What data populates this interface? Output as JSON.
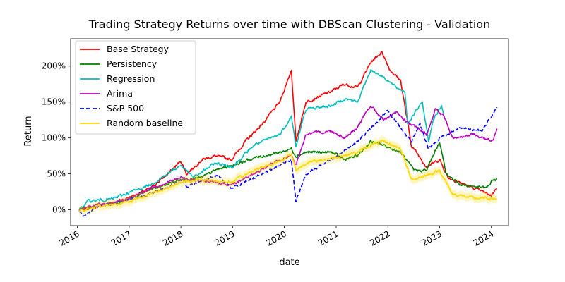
{
  "chart_data": {
    "type": "line",
    "title": "Trading Strategy Returns over time with DBScan Clustering - Validation",
    "xlabel": "date",
    "ylabel": "Return",
    "xlim": [
      "2015-11-15",
      "2024-05-01"
    ],
    "ylim": [
      -0.22,
      2.38
    ],
    "x_ticks": [
      "2016",
      "2017",
      "2018",
      "2019",
      "2020",
      "2021",
      "2022",
      "2023",
      "2024"
    ],
    "y_ticks": [
      {
        "value": 0,
        "label": "0%"
      },
      {
        "value": 0.5,
        "label": "50%"
      },
      {
        "value": 1.0,
        "label": "100%"
      },
      {
        "value": 1.5,
        "label": "150%"
      },
      {
        "value": 2.0,
        "label": "200%"
      }
    ],
    "grid": false,
    "legend_position": "upper-left",
    "series": [
      {
        "name": "Base Strategy",
        "color": "#ff0000",
        "dash": "solid",
        "points": [
          [
            "2016-01-15",
            0.0
          ],
          [
            "2016-06-01",
            0.05
          ],
          [
            "2016-12-01",
            0.15
          ],
          [
            "2017-03-01",
            0.22
          ],
          [
            "2017-06-01",
            0.3
          ],
          [
            "2017-10-01",
            0.5
          ],
          [
            "2018-01-01",
            0.68
          ],
          [
            "2018-02-10",
            0.5
          ],
          [
            "2018-06-01",
            0.7
          ],
          [
            "2018-09-01",
            0.75
          ],
          [
            "2018-12-24",
            0.7
          ],
          [
            "2019-04-01",
            0.95
          ],
          [
            "2019-08-01",
            1.2
          ],
          [
            "2019-12-01",
            1.5
          ],
          [
            "2020-02-20",
            1.95
          ],
          [
            "2020-03-23",
            0.95
          ],
          [
            "2020-06-01",
            1.5
          ],
          [
            "2020-12-01",
            1.65
          ],
          [
            "2021-03-01",
            1.75
          ],
          [
            "2021-06-01",
            1.7
          ],
          [
            "2021-09-01",
            2.05
          ],
          [
            "2021-11-20",
            2.2
          ],
          [
            "2022-01-15",
            1.95
          ],
          [
            "2022-04-01",
            1.8
          ],
          [
            "2022-06-15",
            0.9
          ],
          [
            "2022-10-01",
            0.6
          ],
          [
            "2023-01-01",
            0.7
          ],
          [
            "2023-03-01",
            0.45
          ],
          [
            "2023-09-01",
            0.3
          ],
          [
            "2024-01-01",
            0.2
          ],
          [
            "2024-02-10",
            0.32
          ]
        ]
      },
      {
        "name": "Persistency",
        "color": "#008000",
        "dash": "solid",
        "points": [
          [
            "2016-01-15",
            0.0
          ],
          [
            "2016-06-01",
            0.06
          ],
          [
            "2016-12-01",
            0.12
          ],
          [
            "2017-06-01",
            0.28
          ],
          [
            "2018-01-01",
            0.42
          ],
          [
            "2018-06-01",
            0.45
          ],
          [
            "2018-09-01",
            0.55
          ],
          [
            "2019-01-01",
            0.62
          ],
          [
            "2019-06-01",
            0.72
          ],
          [
            "2019-12-01",
            0.8
          ],
          [
            "2020-02-20",
            0.85
          ],
          [
            "2020-03-23",
            0.75
          ],
          [
            "2020-06-01",
            0.8
          ],
          [
            "2020-12-01",
            0.8
          ],
          [
            "2021-03-01",
            0.7
          ],
          [
            "2021-06-01",
            0.75
          ],
          [
            "2021-09-01",
            0.95
          ],
          [
            "2021-12-01",
            0.9
          ],
          [
            "2022-04-01",
            0.8
          ],
          [
            "2022-07-01",
            0.55
          ],
          [
            "2022-10-01",
            0.55
          ],
          [
            "2023-01-01",
            0.95
          ],
          [
            "2023-02-15",
            0.5
          ],
          [
            "2023-06-01",
            0.35
          ],
          [
            "2023-12-01",
            0.3
          ],
          [
            "2024-01-10",
            0.42
          ],
          [
            "2024-02-10",
            0.42
          ]
        ]
      },
      {
        "name": "Regression",
        "color": "#00bfbf",
        "dash": "solid",
        "points": [
          [
            "2016-01-15",
            0.0
          ],
          [
            "2016-03-15",
            0.12
          ],
          [
            "2016-09-01",
            0.15
          ],
          [
            "2017-06-01",
            0.35
          ],
          [
            "2018-01-01",
            0.62
          ],
          [
            "2018-04-01",
            0.45
          ],
          [
            "2018-09-01",
            0.65
          ],
          [
            "2019-01-01",
            0.6
          ],
          [
            "2019-06-01",
            0.9
          ],
          [
            "2019-12-01",
            1.05
          ],
          [
            "2020-02-20",
            1.3
          ],
          [
            "2020-03-23",
            0.88
          ],
          [
            "2020-06-01",
            1.4
          ],
          [
            "2020-12-01",
            1.45
          ],
          [
            "2021-03-01",
            1.55
          ],
          [
            "2021-06-01",
            1.5
          ],
          [
            "2021-09-01",
            1.95
          ],
          [
            "2021-12-01",
            1.85
          ],
          [
            "2022-03-01",
            1.7
          ],
          [
            "2022-05-01",
            1.65
          ],
          [
            "2022-05-20",
            1.2
          ],
          [
            "2022-09-01",
            1.5
          ],
          [
            "2022-10-15",
            0.95
          ],
          [
            "2022-11-15",
            1.25
          ],
          [
            "2023-01-15",
            1.45
          ],
          [
            "2023-02-01",
            1.3
          ]
        ]
      },
      {
        "name": "Arima",
        "color": "#bf00bf",
        "dash": "solid",
        "points": [
          [
            "2016-01-15",
            0.0
          ],
          [
            "2016-06-01",
            0.07
          ],
          [
            "2016-12-01",
            0.12
          ],
          [
            "2017-06-01",
            0.3
          ],
          [
            "2018-01-01",
            0.45
          ],
          [
            "2018-06-01",
            0.4
          ],
          [
            "2018-12-24",
            0.35
          ],
          [
            "2019-06-01",
            0.5
          ],
          [
            "2019-12-01",
            0.7
          ],
          [
            "2020-02-20",
            0.75
          ],
          [
            "2020-03-23",
            0.62
          ],
          [
            "2020-06-01",
            1.05
          ],
          [
            "2020-12-01",
            1.1
          ],
          [
            "2021-03-01",
            1.0
          ],
          [
            "2021-06-01",
            1.15
          ],
          [
            "2021-09-01",
            1.45
          ],
          [
            "2021-12-01",
            1.25
          ],
          [
            "2022-03-01",
            1.35
          ],
          [
            "2022-06-01",
            1.2
          ],
          [
            "2022-10-01",
            1.05
          ],
          [
            "2022-12-01",
            1.4
          ],
          [
            "2023-02-01",
            1.3
          ],
          [
            "2023-04-01",
            1.0
          ],
          [
            "2023-09-01",
            1.05
          ],
          [
            "2024-01-10",
            0.95
          ],
          [
            "2024-02-10",
            1.15
          ]
        ]
      },
      {
        "name": "S&P 500",
        "color": "#0000ff",
        "dash": "dashed",
        "points": [
          [
            "2016-01-15",
            0.0
          ],
          [
            "2016-02-11",
            -0.08
          ],
          [
            "2016-06-01",
            0.05
          ],
          [
            "2016-12-01",
            0.12
          ],
          [
            "2017-06-01",
            0.22
          ],
          [
            "2018-01-26",
            0.42
          ],
          [
            "2018-02-10",
            0.32
          ],
          [
            "2018-09-20",
            0.48
          ],
          [
            "2018-12-24",
            0.3
          ],
          [
            "2019-06-01",
            0.45
          ],
          [
            "2019-12-01",
            0.62
          ],
          [
            "2020-02-20",
            0.7
          ],
          [
            "2020-03-23",
            0.12
          ],
          [
            "2020-06-01",
            0.5
          ],
          [
            "2020-12-01",
            0.7
          ],
          [
            "2021-06-01",
            0.95
          ],
          [
            "2021-12-31",
            1.38
          ],
          [
            "2022-06-16",
            0.95
          ],
          [
            "2022-08-15",
            1.2
          ],
          [
            "2022-10-12",
            0.85
          ],
          [
            "2023-01-01",
            1.0
          ],
          [
            "2023-06-01",
            1.15
          ],
          [
            "2023-10-27",
            1.1
          ],
          [
            "2024-02-10",
            1.42
          ]
        ]
      },
      {
        "name": "Random baseline",
        "color": "#ffd700",
        "dash": "solid",
        "band": 0.06,
        "points": [
          [
            "2016-01-15",
            -0.02
          ],
          [
            "2016-06-01",
            0.05
          ],
          [
            "2016-12-01",
            0.1
          ],
          [
            "2017-06-01",
            0.22
          ],
          [
            "2018-01-01",
            0.38
          ],
          [
            "2018-06-01",
            0.42
          ],
          [
            "2018-12-24",
            0.38
          ],
          [
            "2019-06-01",
            0.55
          ],
          [
            "2019-12-01",
            0.68
          ],
          [
            "2020-02-20",
            0.78
          ],
          [
            "2020-03-23",
            0.55
          ],
          [
            "2020-06-01",
            0.65
          ],
          [
            "2020-12-01",
            0.72
          ],
          [
            "2021-06-01",
            0.8
          ],
          [
            "2021-09-01",
            0.9
          ],
          [
            "2021-12-01",
            0.95
          ],
          [
            "2022-04-01",
            0.85
          ],
          [
            "2022-06-15",
            0.42
          ],
          [
            "2022-10-01",
            0.48
          ],
          [
            "2023-01-01",
            0.55
          ],
          [
            "2023-04-01",
            0.22
          ],
          [
            "2023-09-01",
            0.16
          ],
          [
            "2024-01-01",
            0.16
          ],
          [
            "2024-02-10",
            0.15
          ]
        ]
      }
    ]
  }
}
